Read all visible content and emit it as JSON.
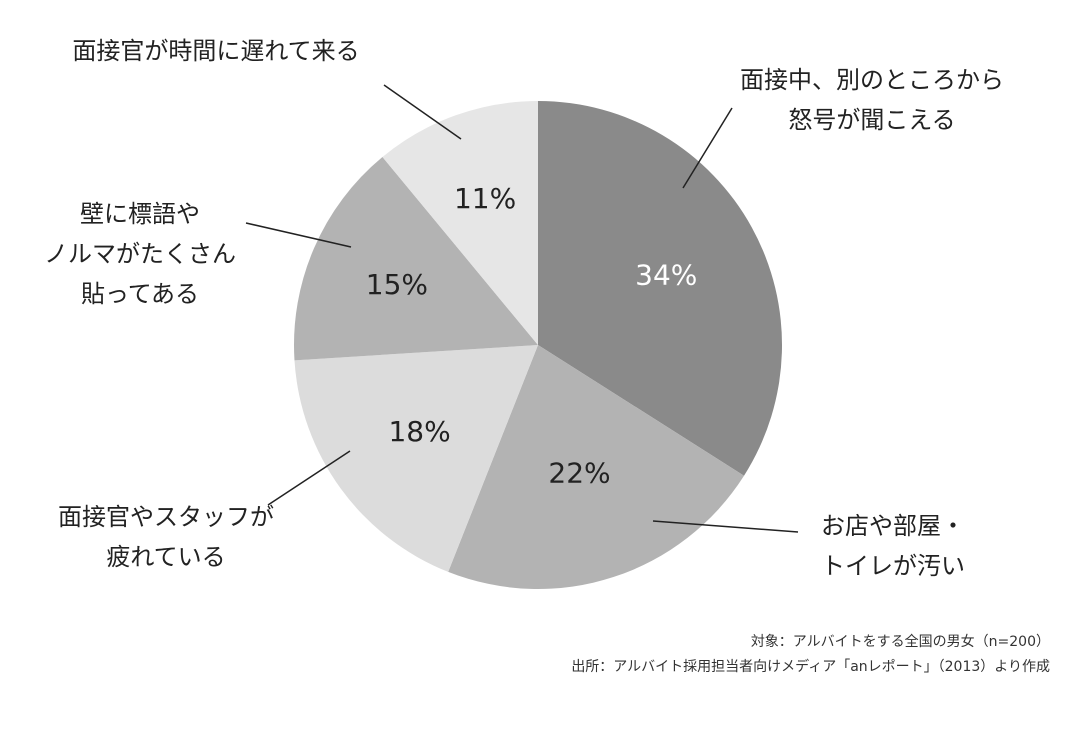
{
  "chart_data": {
    "type": "pie",
    "title": "",
    "slices": [
      {
        "label_lines": [
          "面接中、別のところから",
          "怒号が聞こえる"
        ],
        "value": 34,
        "value_label": "34%",
        "color": "#8a8a8a",
        "label_color": "#ffffff"
      },
      {
        "label_lines": [
          "お店や部屋・",
          "トイレが汚い"
        ],
        "value": 22,
        "value_label": "22%",
        "color": "#b3b3b3",
        "label_color": "#222222"
      },
      {
        "label_lines": [
          "面接官やスタッフが",
          "疲れている"
        ],
        "value": 18,
        "value_label": "18%",
        "color": "#dcdcdc",
        "label_color": "#222222"
      },
      {
        "label_lines": [
          "壁に標語や",
          "ノルマがたくさん",
          "貼ってある"
        ],
        "value": 15,
        "value_label": "15%",
        "color": "#b3b3b3",
        "label_color": "#222222"
      },
      {
        "label_lines": [
          "面接官が時間に遅れて来る"
        ],
        "value": 11,
        "value_label": "11%",
        "color": "#e6e6e6",
        "label_color": "#222222"
      }
    ],
    "start_angle_deg": 0,
    "direction": "clockwise",
    "legend": "none"
  },
  "source": {
    "line1": "対象：アルバイトをする全国の男女（n=200）",
    "line2": "出所：アルバイト採用担当者向けメディア「anレポート」（2013）より作成"
  }
}
